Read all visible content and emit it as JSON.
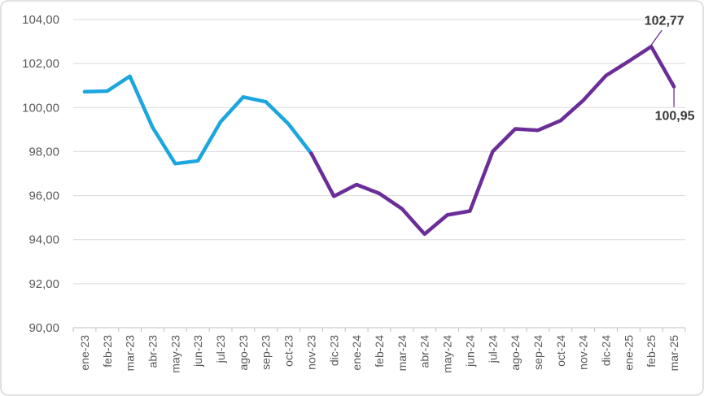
{
  "chart_data": {
    "type": "line",
    "title": "",
    "xlabel": "",
    "ylabel": "",
    "ylim": [
      90,
      104
    ],
    "grid": true,
    "legend": "none",
    "categories": [
      "ene-23",
      "feb-23",
      "mar-23",
      "abr-23",
      "may-23",
      "jun-23",
      "jul-23",
      "ago-23",
      "sep-23",
      "oct-23",
      "nov-23",
      "dic-23",
      "ene-24",
      "feb-24",
      "mar-24",
      "abr-24",
      "may-24",
      "jun-24",
      "jul-24",
      "ago-24",
      "sep-24",
      "oct-24",
      "nov-24",
      "dic-24",
      "ene-25",
      "feb-25",
      "mar-25"
    ],
    "values": [
      100.72,
      100.75,
      101.42,
      99.1,
      97.45,
      97.58,
      99.35,
      100.48,
      100.26,
      99.25,
      97.92,
      95.97,
      96.5,
      96.1,
      95.4,
      94.25,
      95.12,
      95.3,
      98.0,
      99.03,
      98.97,
      99.41,
      100.33,
      101.45,
      102.1,
      102.77,
      100.95
    ],
    "segments": [
      {
        "id": "blue-segment",
        "color": "#1CA6DF",
        "from": 0,
        "to": 10
      },
      {
        "id": "purple-segment",
        "color": "#6B2D98",
        "from": 10,
        "to": 26
      }
    ],
    "yticks": [
      {
        "value": 104,
        "label": "104,00"
      },
      {
        "value": 102,
        "label": "102,00"
      },
      {
        "value": 100,
        "label": "100,00"
      },
      {
        "value": 98,
        "label": "98,00"
      },
      {
        "value": 96,
        "label": "96,00"
      },
      {
        "value": 94,
        "label": "94,00"
      },
      {
        "value": 92,
        "label": "92,00"
      },
      {
        "value": 90,
        "label": "90,00"
      }
    ],
    "point_labels": [
      {
        "index": 25,
        "text": "102,77",
        "position": "above"
      },
      {
        "index": 26,
        "text": "100,95",
        "position": "below"
      }
    ]
  },
  "colors": {
    "blue": "#1CA6DF",
    "purple": "#6B2D98",
    "gridline": "#D9D9D9",
    "axis": "#BFBFBF",
    "tick_label": "#595959",
    "data_label": "#3A3A3A",
    "frame_border": "#D8D8D8",
    "background": "#FFFFFF"
  }
}
